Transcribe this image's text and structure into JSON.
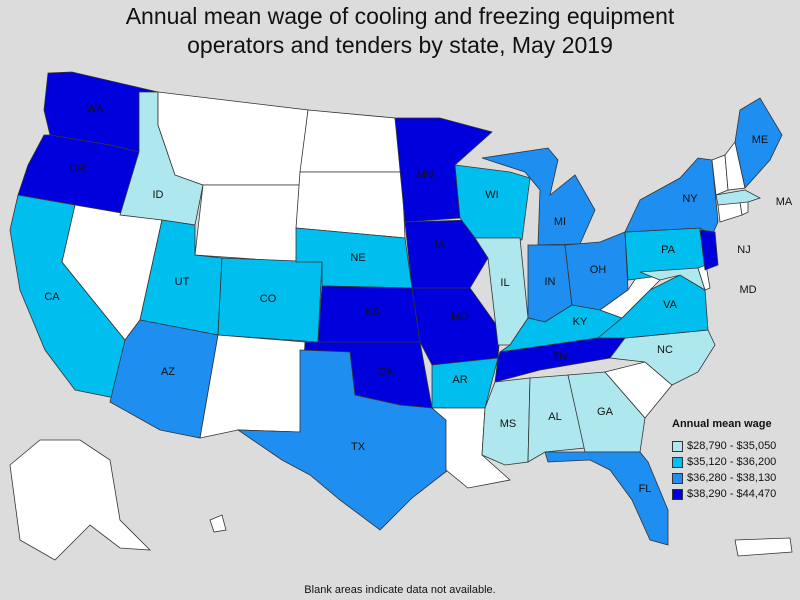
{
  "title_line1": "Annual mean wage of cooling and freezing equipment",
  "title_line2": "operators and tenders by state, May 2019",
  "legend": {
    "title": "Annual mean wage",
    "items": [
      {
        "label": "$28,790 - $35,050",
        "color": "#aee8ee"
      },
      {
        "label": "$35,120 - $36,200",
        "color": "#00bfef"
      },
      {
        "label": "$36,280 - $38,130",
        "color": "#1e8ef0"
      },
      {
        "label": "$38,290 - $44,470",
        "color": "#0000dd"
      }
    ]
  },
  "footnote": "Blank areas indicate data not available.",
  "no_data_color": "#ffffff",
  "states": {
    "WA": 4,
    "OR": 4,
    "CA": 2,
    "ID": 1,
    "UT": 2,
    "AZ": 3,
    "CO": 2,
    "NE": 2,
    "KS": 4,
    "OK": 4,
    "TX": 3,
    "MN": 4,
    "IA": 4,
    "MO": 4,
    "AR": 2,
    "WI": 2,
    "IL": 1,
    "MI": 3,
    "IN": 3,
    "OH": 3,
    "KY": 2,
    "TN": 4,
    "MS": 1,
    "AL": 1,
    "GA": 1,
    "FL": 3,
    "NC": 1,
    "VA": 2,
    "PA": 2,
    "NY": 3,
    "NJ": 4,
    "MD": 1,
    "ME": 3,
    "MA": 1,
    "MT": 0,
    "WY": 0,
    "ND": 0,
    "SD": 0,
    "NV": 0,
    "NM": 0,
    "LA": 0,
    "SC": 0,
    "WV": 0,
    "AK": 0,
    "HI": 0,
    "PR": 0,
    "VT": 0,
    "NH": 0,
    "CT": 0,
    "RI": 0,
    "DE": 0,
    "DC": 0
  },
  "labels": [
    "WA",
    "OR",
    "CA",
    "ID",
    "UT",
    "AZ",
    "CO",
    "NE",
    "KS",
    "OK",
    "TX",
    "MN",
    "IA",
    "MO",
    "AR",
    "WI",
    "IL",
    "MI",
    "IN",
    "OH",
    "KY",
    "TN",
    "MS",
    "AL",
    "GA",
    "FL",
    "NC",
    "VA",
    "PA",
    "NY",
    "NJ",
    "MD",
    "ME",
    "MA"
  ]
}
